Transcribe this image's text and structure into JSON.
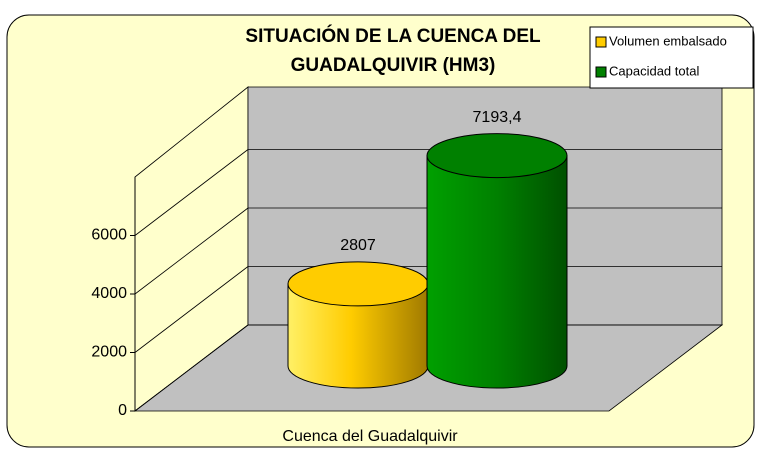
{
  "chart_data": {
    "type": "bar",
    "title": "SITUACIÓN DE LA CUENCA DEL GUADALQUIVIR (HM3)",
    "categories": [
      "Cuenca del Guadalquivir"
    ],
    "series": [
      {
        "name": "Volumen embalsado",
        "color": "#ffcc00",
        "values": [
          2807
        ],
        "value_labels": [
          "2807"
        ]
      },
      {
        "name": "Capacidad total",
        "color": "#008000",
        "values": [
          7193.4
        ],
        "value_labels": [
          "7193,4"
        ]
      }
    ],
    "ylim": [
      0,
      8000
    ],
    "yticks": [
      0,
      2000,
      4000,
      6000
    ],
    "grid": true,
    "legend": "top-right"
  }
}
